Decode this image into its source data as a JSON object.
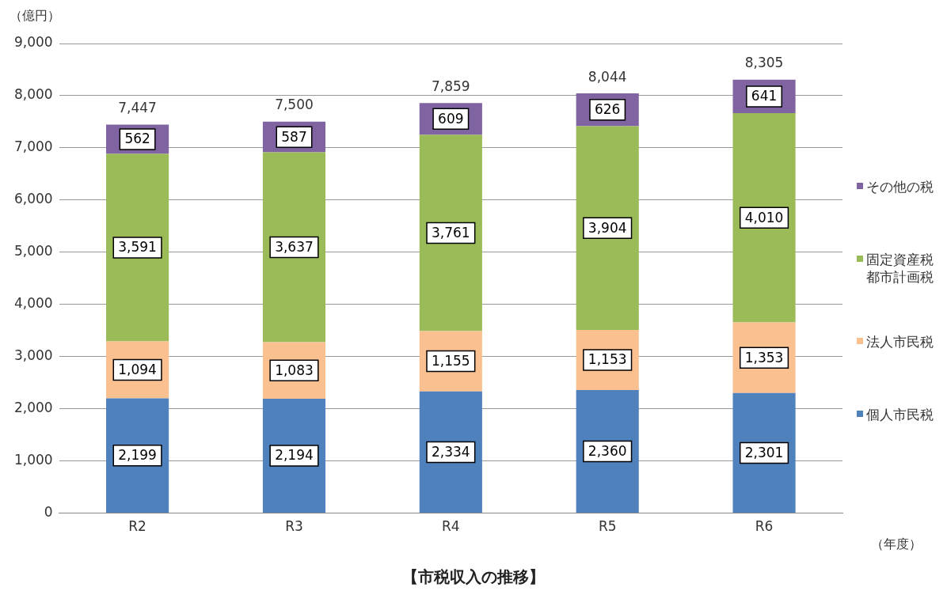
{
  "chart_data": {
    "type": "bar",
    "stacked": true,
    "title": "【市税収入の推移】",
    "ylabel": "（億円）",
    "xlabel": "（年度）",
    "categories": [
      "R2",
      "R3",
      "R4",
      "R5",
      "R6"
    ],
    "series": [
      {
        "name": "個人市民税",
        "color": "#4f81bd",
        "values": [
          2199,
          2194,
          2334,
          2360,
          2301
        ],
        "value_labels": [
          "2,199",
          "2,194",
          "2,334",
          "2,360",
          "2,301"
        ]
      },
      {
        "name": "法人市民税",
        "color": "#fac090",
        "values": [
          1094,
          1083,
          1155,
          1153,
          1353
        ],
        "value_labels": [
          "1,094",
          "1,083",
          "1,155",
          "1,153",
          "1,353"
        ]
      },
      {
        "name": "固定資産税都市計画税",
        "color": "#9bbb59",
        "values": [
          3591,
          3637,
          3761,
          3904,
          4010
        ],
        "value_labels": [
          "3,591",
          "3,637",
          "3,761",
          "3,904",
          "4,010"
        ]
      },
      {
        "name": "その他の税",
        "color": "#8064a2",
        "values": [
          562,
          587,
          609,
          626,
          641
        ],
        "value_labels": [
          "562",
          "587",
          "609",
          "626",
          "641"
        ]
      }
    ],
    "totals": [
      "7,447",
      "7,500",
      "7,859",
      "8,044",
      "8,305"
    ],
    "ylim": [
      0,
      9000
    ],
    "yticks": [
      0,
      {
        "value": 1000,
        "label": "1,000"
      },
      {
        "value": 2000,
        "label": "2,000"
      },
      {
        "value": 3000,
        "label": "3,000"
      },
      {
        "value": 4000,
        "label": "4,000"
      },
      {
        "value": 5000,
        "label": "5,000"
      },
      {
        "value": 6000,
        "label": "6,000"
      },
      {
        "value": 7000,
        "label": "7,000"
      },
      {
        "value": 8000,
        "label": "8,000"
      },
      {
        "value": 9000,
        "label": "9,000"
      }
    ],
    "grid": "y",
    "legend": "right"
  }
}
